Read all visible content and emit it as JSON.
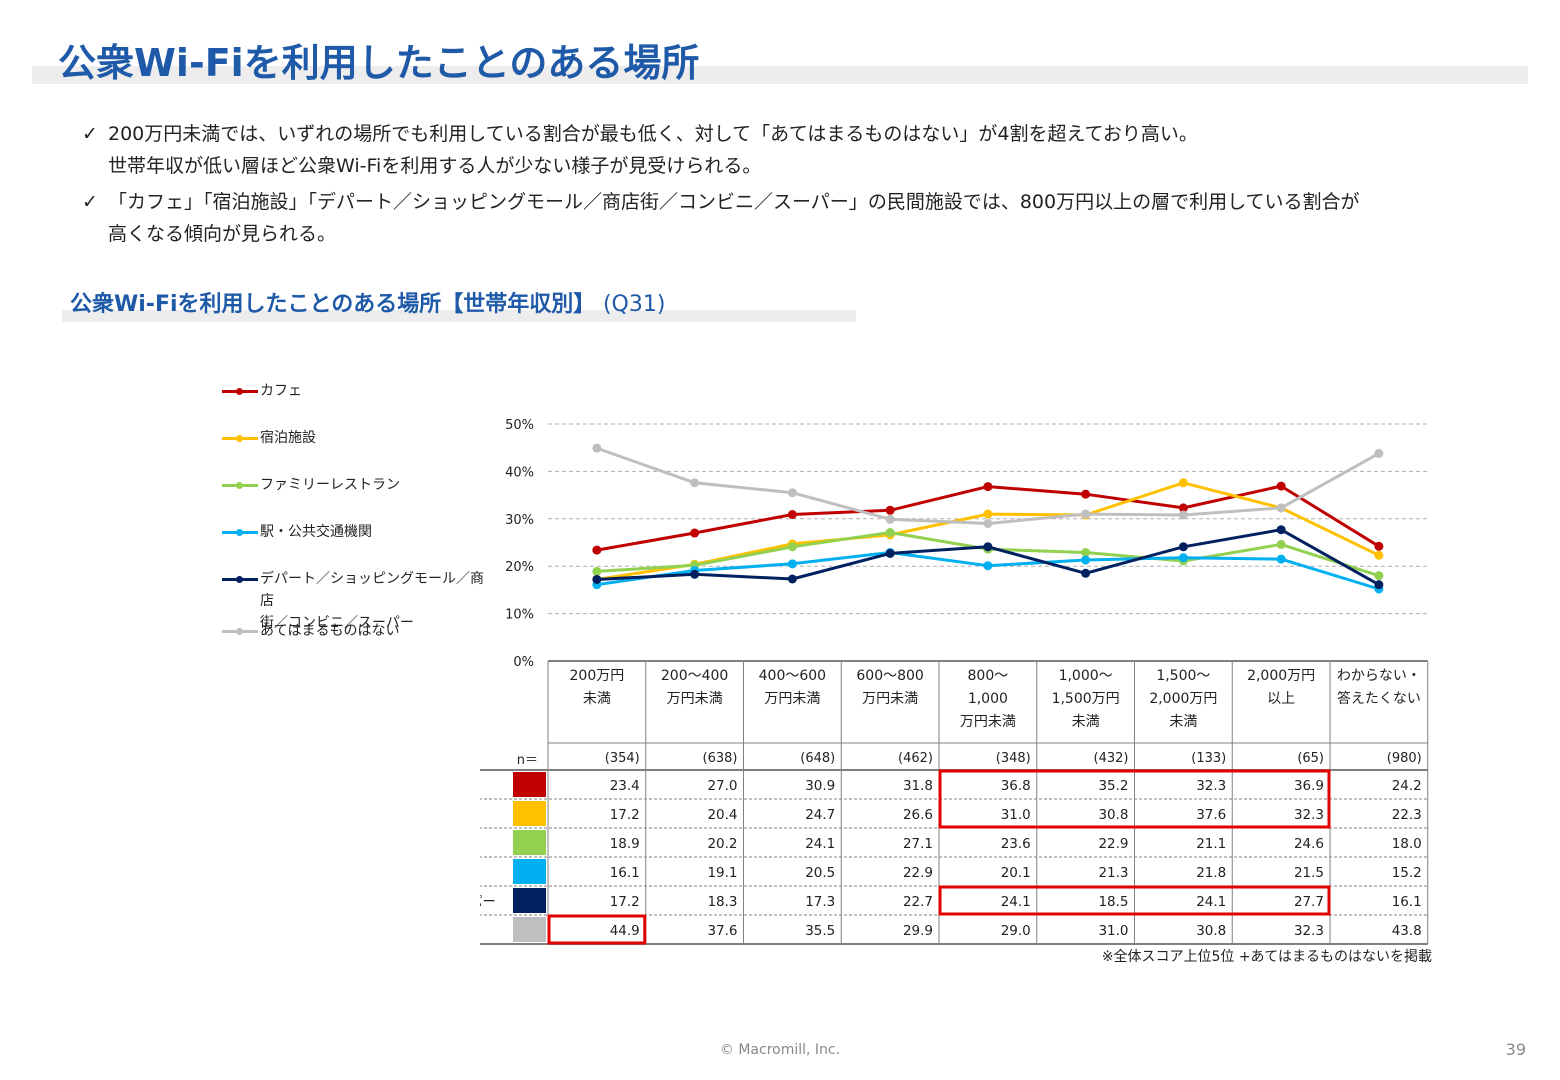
{
  "page": {
    "title": "公衆Wi-Fiを利用したことのある場所",
    "check": "✓",
    "bullets": [
      [
        "200万円未満では、いずれの場所でも利用している割合が最も低く、対して「あてはまるものはない」が4割を超えており高い。",
        "世帯年収が低い層ほど公衆Wi-Fiを利用する人が少ない様子が見受けられる。"
      ],
      [
        "「カフェ」「宿泊施設」「デパート／ショッピングモール／商店街／コンビニ／スーパー」の民間施設では、800万円以上の層で利用している割合が",
        "高くなる傾向が見られる。"
      ]
    ],
    "subtitle": "公衆Wi-Fiを利用したことのある場所【世帯年収別】",
    "subtitle_q": "(Q31)",
    "footnote": "※全体スコア上位5位 +あてはまるものはないを掲載",
    "footer": "© Macromill, Inc.",
    "page_number": "39"
  },
  "chart_data": {
    "type": "line",
    "title": "公衆Wi-Fiを利用したことのある場所【世帯年収別】",
    "ylim": [
      0,
      50
    ],
    "yticks": [
      0,
      10,
      20,
      30,
      40,
      50
    ],
    "ytick_labels": [
      "0%",
      "10%",
      "20%",
      "30%",
      "40%",
      "50%"
    ],
    "grid": true,
    "n_label": "n＝",
    "categories": [
      [
        "200万円",
        "未満"
      ],
      [
        "200～400",
        "万円未満"
      ],
      [
        "400～600",
        "万円未満"
      ],
      [
        "600～800",
        "万円未満"
      ],
      [
        "800～",
        "1,000",
        "万円未満"
      ],
      [
        "1,000～",
        "1,500万円",
        "未満"
      ],
      [
        "1,500～",
        "2,000万円",
        "未満"
      ],
      [
        "2,000万円",
        "以上"
      ],
      [
        "わからない・",
        "答えたくない"
      ]
    ],
    "n": [
      "(354)",
      "(638)",
      "(648)",
      "(462)",
      "(348)",
      "(432)",
      "(133)",
      "(65)",
      "(980)"
    ],
    "series": [
      {
        "name": "カフェ",
        "legend": [
          "カフェ"
        ],
        "color": "#c00000",
        "values": [
          23.4,
          27.0,
          30.9,
          31.8,
          36.8,
          35.2,
          32.3,
          36.9,
          24.2
        ],
        "labels": [
          "23.4",
          "27.0",
          "30.9",
          "31.8",
          "36.8",
          "35.2",
          "32.3",
          "36.9",
          "24.2"
        ]
      },
      {
        "name": "宿泊施設",
        "legend": [
          "宿泊施設"
        ],
        "color": "#ffc000",
        "values": [
          17.2,
          20.4,
          24.7,
          26.6,
          31.0,
          30.8,
          37.6,
          32.3,
          22.3
        ],
        "labels": [
          "17.2",
          "20.4",
          "24.7",
          "26.6",
          "31.0",
          "30.8",
          "37.6",
          "32.3",
          "22.3"
        ]
      },
      {
        "name": "ファミリーレストラン",
        "legend": [
          "ファミリーレストラン"
        ],
        "color": "#92d050",
        "values": [
          18.9,
          20.2,
          24.1,
          27.1,
          23.6,
          22.9,
          21.1,
          24.6,
          18.0
        ],
        "labels": [
          "18.9",
          "20.2",
          "24.1",
          "27.1",
          "23.6",
          "22.9",
          "21.1",
          "24.6",
          "18.0"
        ]
      },
      {
        "name": "駅・公共交通機関",
        "legend": [
          "駅・公共交通機関"
        ],
        "color": "#00b0f0",
        "values": [
          16.1,
          19.1,
          20.5,
          22.9,
          20.1,
          21.3,
          21.8,
          21.5,
          15.2
        ],
        "labels": [
          "16.1",
          "19.1",
          "20.5",
          "22.9",
          "20.1",
          "21.3",
          "21.8",
          "21.5",
          "15.2"
        ]
      },
      {
        "name": "デパート／ショッピングモール／商店街／コンビニ／スーパー",
        "legend": [
          "デパート／ショッピングモール／商店",
          "街／コンビニ／スーパー"
        ],
        "color": "#002060",
        "values": [
          17.2,
          18.3,
          17.3,
          22.7,
          24.1,
          18.5,
          24.1,
          27.7,
          16.1
        ],
        "labels": [
          "17.2",
          "18.3",
          "17.3",
          "22.7",
          "24.1",
          "18.5",
          "24.1",
          "27.7",
          "16.1"
        ]
      },
      {
        "name": "あてはまるものはない",
        "legend": [
          "あてはまるものはない"
        ],
        "color": "#bfbfbf",
        "values": [
          44.9,
          37.6,
          35.5,
          29.9,
          29.0,
          31.0,
          30.8,
          32.3,
          43.8
        ],
        "labels": [
          "44.9",
          "37.6",
          "35.5",
          "29.9",
          "29.0",
          "31.0",
          "30.8",
          "32.3",
          "43.8"
        ]
      }
    ],
    "highlights": [
      {
        "rows": [
          0,
          1
        ],
        "cols": [
          4,
          7
        ]
      },
      {
        "rows": [
          4,
          4
        ],
        "cols": [
          4,
          7
        ]
      },
      {
        "rows": [
          5,
          5
        ],
        "cols": [
          0,
          0
        ]
      }
    ],
    "highlight_color": "#e00000"
  }
}
